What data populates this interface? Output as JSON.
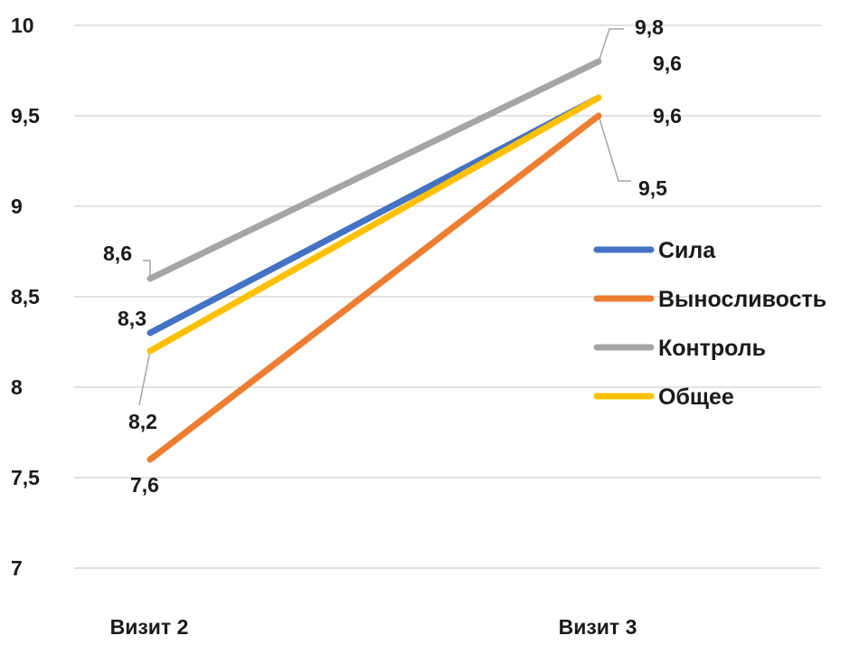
{
  "chart_data": {
    "type": "line",
    "categories": [
      "Визит 2",
      "Визит 3"
    ],
    "series": [
      {
        "name": "Сила",
        "values": [
          8.3,
          9.6
        ],
        "color": "#4472c4",
        "labels": [
          "8,3",
          "9,6"
        ]
      },
      {
        "name": "Выносливость",
        "values": [
          7.6,
          9.5
        ],
        "color": "#ed7d31",
        "labels": [
          "7,6",
          "9,5"
        ]
      },
      {
        "name": "Контроль",
        "values": [
          8.6,
          9.8
        ],
        "color": "#a5a5a5",
        "labels": [
          "8,6",
          "9,8"
        ]
      },
      {
        "name": "Общее",
        "values": [
          8.2,
          9.6
        ],
        "color": "#ffc000",
        "labels": [
          "8,2",
          "9,6"
        ]
      }
    ],
    "y_ticks": [
      "7",
      "7,5",
      "8",
      "8,5",
      "9",
      "9,5",
      "10"
    ],
    "ylim": [
      7,
      10
    ],
    "grid": true,
    "legend_position": "right"
  }
}
